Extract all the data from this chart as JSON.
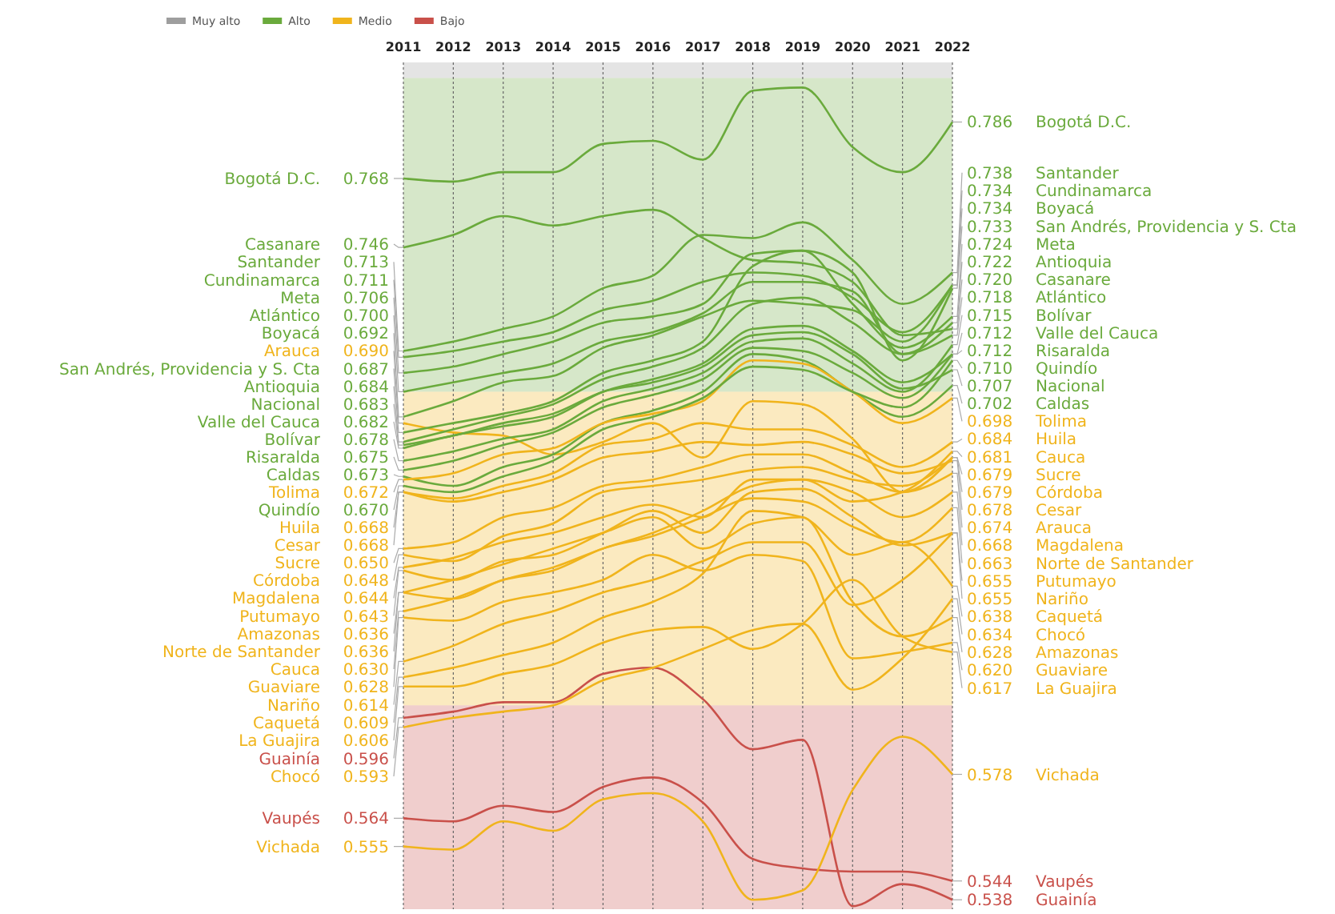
{
  "chart_data": {
    "type": "line",
    "categories": [
      "2011",
      "2012",
      "2013",
      "2014",
      "2015",
      "2016",
      "2017",
      "2018",
      "2019",
      "2020",
      "2021",
      "2022"
    ],
    "ylim": [
      0.535,
      0.805
    ],
    "tick_labels": "x",
    "grid": "x",
    "legend": "top left",
    "marker": "none",
    "line_style": "solid",
    "bands": [
      {
        "axis": "y",
        "from": 0.8,
        "to": 0.805,
        "label": "Muy alto",
        "color": "#9e9e9e"
      },
      {
        "axis": "y",
        "from": 0.7,
        "to": 0.8,
        "label": "Alto",
        "color": "#6aaa3c"
      },
      {
        "axis": "y",
        "from": 0.6,
        "to": 0.7,
        "label": "Medio",
        "color": "#f0b41c"
      },
      {
        "axis": "y",
        "from": 0.535,
        "to": 0.6,
        "label": "Bajo",
        "color": "#c9504a"
      }
    ],
    "series": [
      {
        "name": "Bogotá D.C.",
        "color": "#6aaa3c",
        "values": [
          0.768,
          0.767,
          0.77,
          0.77,
          0.779,
          0.78,
          0.774,
          0.796,
          0.797,
          0.778,
          0.77,
          0.786
        ],
        "value_labels": [
          "0.768",
          null,
          null,
          null,
          null,
          null,
          null,
          null,
          null,
          null,
          null,
          "0.786"
        ]
      },
      {
        "name": "Casanare",
        "color": "#6aaa3c",
        "values": [
          0.746,
          0.75,
          0.756,
          0.753,
          0.756,
          0.758,
          0.749,
          0.742,
          0.741,
          0.735,
          0.718,
          0.72
        ],
        "value_labels": [
          "0.746",
          null,
          null,
          null,
          null,
          null,
          null,
          null,
          null,
          null,
          null,
          "0.720"
        ]
      },
      {
        "name": "Santander",
        "color": "#6aaa3c",
        "values": [
          0.713,
          0.716,
          0.72,
          0.724,
          0.733,
          0.737,
          0.75,
          0.749,
          0.754,
          0.742,
          0.728,
          0.738
        ],
        "value_labels": [
          "0.713",
          null,
          null,
          null,
          null,
          null,
          null,
          null,
          null,
          null,
          null,
          "0.738"
        ]
      },
      {
        "name": "Cundinamarca",
        "color": "#6aaa3c",
        "values": [
          0.711,
          0.713,
          0.716,
          0.719,
          0.726,
          0.729,
          0.735,
          0.738,
          0.737,
          0.73,
          0.719,
          0.734
        ],
        "value_labels": [
          "0.711",
          null,
          null,
          null,
          null,
          null,
          null,
          null,
          null,
          null,
          null,
          "0.734"
        ]
      },
      {
        "name": "Meta",
        "color": "#6aaa3c",
        "values": [
          0.706,
          0.708,
          0.712,
          0.716,
          0.722,
          0.724,
          0.728,
          0.744,
          0.745,
          0.728,
          0.714,
          0.724
        ],
        "value_labels": [
          "0.706",
          null,
          null,
          null,
          null,
          null,
          null,
          null,
          null,
          null,
          null,
          "0.724"
        ]
      },
      {
        "name": "Atlántico",
        "color": "#6aaa3c",
        "values": [
          0.7,
          0.703,
          0.706,
          0.709,
          0.716,
          0.719,
          0.725,
          0.735,
          0.735,
          0.732,
          0.712,
          0.718
        ],
        "value_labels": [
          "0.700",
          null,
          null,
          null,
          null,
          null,
          null,
          null,
          null,
          null,
          null,
          "0.718"
        ]
      },
      {
        "name": "Boyacá",
        "color": "#6aaa3c",
        "values": [
          0.692,
          0.697,
          0.703,
          0.705,
          0.714,
          0.718,
          0.724,
          0.729,
          0.728,
          0.726,
          0.716,
          0.734
        ],
        "value_labels": [
          "0.692",
          null,
          null,
          null,
          null,
          null,
          null,
          null,
          null,
          null,
          null,
          "0.734"
        ]
      },
      {
        "name": "Arauca",
        "color": "#f0b41c",
        "values": [
          0.69,
          0.687,
          0.686,
          0.68,
          0.684,
          0.69,
          0.679,
          0.697,
          0.696,
          0.685,
          0.668,
          0.674
        ],
        "value_labels": [
          "0.690",
          null,
          null,
          null,
          null,
          null,
          null,
          null,
          null,
          null,
          null,
          "0.674"
        ]
      },
      {
        "name": "San Andrés, Providencia y S. Cta",
        "color": "#6aaa3c",
        "values": [
          0.687,
          0.69,
          0.693,
          0.697,
          0.706,
          0.71,
          0.716,
          0.74,
          0.745,
          0.738,
          0.71,
          0.733
        ],
        "value_labels": [
          "0.687",
          null,
          null,
          null,
          null,
          null,
          null,
          null,
          null,
          null,
          null,
          "0.733"
        ]
      },
      {
        "name": "Antioquia",
        "color": "#6aaa3c",
        "values": [
          0.684,
          0.688,
          0.692,
          0.696,
          0.704,
          0.708,
          0.714,
          0.728,
          0.73,
          0.722,
          0.712,
          0.722
        ],
        "value_labels": [
          "0.684",
          null,
          null,
          null,
          null,
          null,
          null,
          null,
          null,
          null,
          null,
          "0.722"
        ]
      },
      {
        "name": "Nacional",
        "color": "#6aaa3c",
        "values": [
          0.683,
          0.686,
          0.69,
          0.693,
          0.7,
          0.703,
          0.708,
          0.718,
          0.719,
          0.712,
          0.701,
          0.707
        ],
        "value_labels": [
          "0.683",
          null,
          null,
          null,
          null,
          null,
          null,
          null,
          null,
          null,
          null,
          "0.707"
        ]
      },
      {
        "name": "Valle del Cauca",
        "color": "#6aaa3c",
        "values": [
          0.682,
          0.686,
          0.689,
          0.692,
          0.7,
          0.704,
          0.709,
          0.72,
          0.721,
          0.713,
          0.703,
          0.712
        ],
        "value_labels": [
          "0.682",
          null,
          null,
          null,
          null,
          null,
          null,
          null,
          null,
          null,
          null,
          "0.712"
        ]
      },
      {
        "name": "Bolívar",
        "color": "#6aaa3c",
        "values": [
          0.678,
          0.681,
          0.685,
          0.688,
          0.697,
          0.701,
          0.706,
          0.716,
          0.717,
          0.709,
          0.7,
          0.715
        ],
        "value_labels": [
          "0.678",
          null,
          null,
          null,
          null,
          null,
          null,
          null,
          null,
          null,
          null,
          "0.715"
        ]
      },
      {
        "name": "Risaralda",
        "color": "#6aaa3c",
        "values": [
          0.675,
          0.678,
          0.683,
          0.687,
          0.695,
          0.699,
          0.704,
          0.714,
          0.713,
          0.706,
          0.698,
          0.712
        ],
        "value_labels": [
          "0.675",
          null,
          null,
          null,
          null,
          null,
          null,
          null,
          null,
          null,
          null,
          "0.712"
        ]
      },
      {
        "name": "Caldas",
        "color": "#6aaa3c",
        "values": [
          0.673,
          0.67,
          0.676,
          0.68,
          0.69,
          0.694,
          0.7,
          0.712,
          0.71,
          0.7,
          0.692,
          0.702
        ],
        "value_labels": [
          "0.673",
          null,
          null,
          null,
          null,
          null,
          null,
          null,
          null,
          null,
          null,
          "0.702"
        ]
      },
      {
        "name": "Tolima",
        "color": "#f0b41c",
        "values": [
          0.672,
          0.674,
          0.68,
          0.682,
          0.69,
          0.693,
          0.697,
          0.71,
          0.709,
          0.7,
          0.69,
          0.698
        ],
        "value_labels": [
          "0.672",
          null,
          null,
          null,
          null,
          null,
          null,
          null,
          null,
          null,
          null,
          "0.698"
        ]
      },
      {
        "name": "Quindío",
        "color": "#6aaa3c",
        "values": [
          0.67,
          0.668,
          0.673,
          0.678,
          0.688,
          0.692,
          0.698,
          0.708,
          0.707,
          0.7,
          0.695,
          0.71
        ],
        "value_labels": [
          "0.670",
          null,
          null,
          null,
          null,
          null,
          null,
          null,
          null,
          null,
          null,
          "0.710"
        ]
      },
      {
        "name": "Huila",
        "color": "#f0b41c",
        "values": [
          0.668,
          0.666,
          0.67,
          0.674,
          0.683,
          0.685,
          0.69,
          0.688,
          0.688,
          0.683,
          0.676,
          0.684
        ],
        "value_labels": [
          "0.668",
          null,
          null,
          null,
          null,
          null,
          null,
          null,
          null,
          null,
          null,
          "0.684"
        ]
      },
      {
        "name": "Cesar",
        "color": "#f0b41c",
        "values": [
          0.668,
          0.665,
          0.668,
          0.672,
          0.679,
          0.681,
          0.684,
          0.683,
          0.684,
          0.68,
          0.674,
          0.678
        ],
        "value_labels": [
          "0.668",
          null,
          null,
          null,
          null,
          null,
          null,
          null,
          null,
          null,
          null,
          "0.678"
        ]
      },
      {
        "name": "Sucre",
        "color": "#f0b41c",
        "values": [
          0.65,
          0.652,
          0.66,
          0.663,
          0.67,
          0.672,
          0.676,
          0.68,
          0.68,
          0.674,
          0.668,
          0.679
        ],
        "value_labels": [
          "0.650",
          null,
          null,
          null,
          null,
          null,
          null,
          null,
          null,
          null,
          null,
          "0.679"
        ]
      },
      {
        "name": "Córdoba",
        "color": "#f0b41c",
        "values": [
          0.648,
          0.646,
          0.654,
          0.658,
          0.668,
          0.67,
          0.672,
          0.675,
          0.676,
          0.672,
          0.67,
          0.679
        ],
        "value_labels": [
          "0.648",
          null,
          null,
          null,
          null,
          null,
          null,
          null,
          null,
          null,
          null,
          "0.679"
        ]
      },
      {
        "name": "Magdalena",
        "color": "#f0b41c",
        "values": [
          0.644,
          0.647,
          0.652,
          0.655,
          0.66,
          0.664,
          0.66,
          0.672,
          0.672,
          0.668,
          0.66,
          0.668
        ],
        "value_labels": [
          "0.644",
          null,
          null,
          null,
          null,
          null,
          null,
          null,
          null,
          null,
          null,
          "0.668"
        ]
      },
      {
        "name": "Putumayo",
        "color": "#f0b41c",
        "values": [
          0.643,
          0.64,
          0.646,
          0.648,
          0.655,
          0.662,
          0.655,
          0.668,
          0.669,
          0.66,
          0.651,
          0.655
        ],
        "value_labels": [
          "0.643",
          null,
          null,
          null,
          null,
          null,
          null,
          null,
          null,
          null,
          null,
          "0.655"
        ]
      },
      {
        "name": "Amazonas",
        "color": "#f0b41c",
        "values": [
          0.636,
          0.64,
          0.645,
          0.65,
          0.655,
          0.66,
          0.65,
          0.658,
          0.66,
          0.633,
          0.622,
          0.628
        ],
        "value_labels": [
          "0.636",
          null,
          null,
          null,
          null,
          null,
          null,
          null,
          null,
          null,
          null,
          "0.628"
        ]
      },
      {
        "name": "Norte de Santander",
        "color": "#f0b41c",
        "values": [
          0.636,
          0.634,
          0.64,
          0.643,
          0.65,
          0.654,
          0.66,
          0.666,
          0.665,
          0.657,
          0.652,
          0.663
        ],
        "value_labels": [
          "0.636",
          null,
          null,
          null,
          null,
          null,
          null,
          null,
          null,
          null,
          null,
          "0.663"
        ]
      },
      {
        "name": "Cauca",
        "color": "#f0b41c",
        "values": [
          0.63,
          0.634,
          0.64,
          0.644,
          0.65,
          0.655,
          0.662,
          0.67,
          0.672,
          0.665,
          0.668,
          0.681
        ],
        "value_labels": [
          "0.630",
          null,
          null,
          null,
          null,
          null,
          null,
          null,
          null,
          null,
          null,
          "0.681"
        ]
      },
      {
        "name": "Guaviare",
        "color": "#f0b41c",
        "values": [
          0.628,
          0.627,
          0.633,
          0.636,
          0.64,
          0.648,
          0.643,
          0.648,
          0.646,
          0.615,
          0.617,
          0.62
        ],
        "value_labels": [
          "0.628",
          null,
          null,
          null,
          null,
          null,
          null,
          null,
          null,
          null,
          null,
          "0.620"
        ]
      },
      {
        "name": "Nariño",
        "color": "#f0b41c",
        "values": [
          0.614,
          0.619,
          0.626,
          0.63,
          0.636,
          0.64,
          0.646,
          0.652,
          0.652,
          0.632,
          0.64,
          0.655
        ],
        "value_labels": [
          "0.614",
          null,
          null,
          null,
          null,
          null,
          null,
          null,
          null,
          null,
          null,
          "0.655"
        ]
      },
      {
        "name": "Caquetá",
        "color": "#f0b41c",
        "values": [
          0.609,
          0.612,
          0.616,
          0.62,
          0.628,
          0.633,
          0.642,
          0.662,
          0.66,
          0.648,
          0.652,
          0.638
        ],
        "value_labels": [
          "0.609",
          null,
          null,
          null,
          null,
          null,
          null,
          null,
          null,
          null,
          null,
          "0.638"
        ]
      },
      {
        "name": "La Guajira",
        "color": "#f0b41c",
        "values": [
          0.606,
          0.606,
          0.61,
          0.613,
          0.62,
          0.624,
          0.625,
          0.618,
          0.626,
          0.64,
          0.622,
          0.617
        ],
        "value_labels": [
          "0.606",
          null,
          null,
          null,
          null,
          null,
          null,
          null,
          null,
          null,
          null,
          "0.617"
        ]
      },
      {
        "name": "Guainía",
        "color": "#c9504a",
        "values": [
          0.596,
          0.598,
          0.601,
          0.601,
          0.61,
          0.612,
          0.602,
          0.586,
          0.589,
          0.536,
          0.543,
          0.538
        ],
        "value_labels": [
          "0.596",
          null,
          null,
          null,
          null,
          null,
          null,
          null,
          null,
          null,
          null,
          "0.538"
        ]
      },
      {
        "name": "Chocó",
        "color": "#f0b41c",
        "values": [
          0.593,
          0.596,
          0.598,
          0.6,
          0.608,
          0.612,
          0.618,
          0.624,
          0.626,
          0.605,
          0.615,
          0.634
        ],
        "value_labels": [
          "0.593",
          null,
          null,
          null,
          null,
          null,
          null,
          null,
          null,
          null,
          null,
          "0.634"
        ]
      },
      {
        "name": "Vaupés",
        "color": "#c9504a",
        "values": [
          0.564,
          0.563,
          0.568,
          0.566,
          0.574,
          0.577,
          0.569,
          0.551,
          0.548,
          0.547,
          0.547,
          0.544
        ],
        "value_labels": [
          "0.564",
          null,
          null,
          null,
          null,
          null,
          null,
          null,
          null,
          null,
          null,
          "0.544"
        ]
      },
      {
        "name": "Vichada",
        "color": "#f0b41c",
        "values": [
          0.555,
          0.554,
          0.563,
          0.56,
          0.57,
          0.572,
          0.563,
          0.538,
          0.541,
          0.573,
          0.59,
          0.578
        ],
        "value_labels": [
          "0.555",
          null,
          null,
          null,
          null,
          null,
          null,
          null,
          null,
          null,
          null,
          "0.578"
        ]
      }
    ]
  }
}
